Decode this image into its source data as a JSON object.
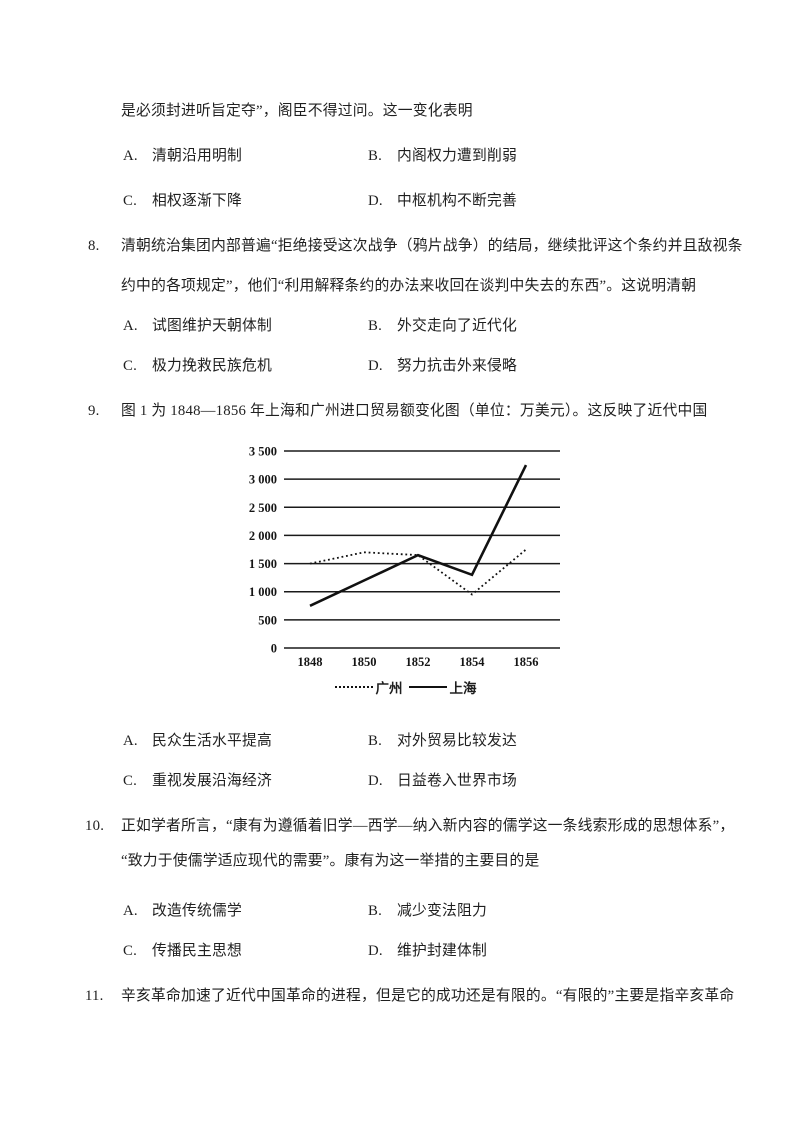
{
  "questions": [
    {
      "number": "",
      "lines": [
        "是必须封进听旨定夺”，阁臣不得过问。这一变化表明"
      ],
      "options": [
        {
          "label": "A.",
          "text": "清朝沿用明制"
        },
        {
          "label": "B.",
          "text": "内阁权力遭到削弱"
        },
        {
          "label": "C.",
          "text": "相权逐渐下降"
        },
        {
          "label": "D.",
          "text": "中枢机构不断完善"
        }
      ]
    },
    {
      "number": "8.",
      "lines": [
        "清朝统治集团内部普遍“拒绝接受这次战争（鸦片战争）的结局，继续批评这个条约并且敌视条",
        "约中的各项规定”，他们“利用解释条约的办法来收回在谈判中失去的东西”。这说明清朝"
      ],
      "options": [
        {
          "label": "A.",
          "text": "试图维护天朝体制"
        },
        {
          "label": "B.",
          "text": "外交走向了近代化"
        },
        {
          "label": "C.",
          "text": "极力挽救民族危机"
        },
        {
          "label": "D.",
          "text": "努力抗击外来侵略"
        }
      ]
    },
    {
      "number": "9.",
      "lines": [
        "图 1 为 1848—1856 年上海和广州进口贸易额变化图（单位：万美元）。这反映了近代中国"
      ],
      "options": [
        {
          "label": "A.",
          "text": "民众生活水平提高"
        },
        {
          "label": "B.",
          "text": "对外贸易比较发达"
        },
        {
          "label": "C.",
          "text": "重视发展沿海经济"
        },
        {
          "label": "D.",
          "text": "日益卷入世界市场"
        }
      ]
    },
    {
      "number": "10.",
      "lines": [
        "正如学者所言，“康有为遵循着旧学—西学—纳入新内容的儒学这一条线索形成的思想体系”，",
        "“致力于使儒学适应现代的需要”。康有为这一举措的主要目的是"
      ],
      "options": [
        {
          "label": "A.",
          "text": "改造传统儒学"
        },
        {
          "label": "B.",
          "text": "减少变法阻力"
        },
        {
          "label": "C.",
          "text": "传播民主思想"
        },
        {
          "label": "D.",
          "text": "维护封建体制"
        }
      ]
    },
    {
      "number": "11.",
      "lines": [
        "辛亥革命加速了近代中国革命的进程，但是它的成功还是有限的。“有限的”主要是指辛亥革命"
      ],
      "options": []
    }
  ],
  "chart_data": {
    "type": "line",
    "title": "1848—1856 年上海和广州进口贸易额变化图",
    "unit_note": "单位：万美元",
    "x": [
      1848,
      1850,
      1852,
      1854,
      1856
    ],
    "x_tick_labels": [
      "1848",
      "1850",
      "1852",
      "1854",
      "1856"
    ],
    "y_tick_labels": [
      "3 500",
      "3 000",
      "2 500",
      "2 000",
      "1 500",
      "1 000",
      "500",
      "0"
    ],
    "ylim": [
      0,
      3500
    ],
    "y_step": 500,
    "grid": "horizontal",
    "legend_position": "bottom",
    "line_color": "#111111",
    "series": [
      {
        "name": "广州",
        "style": "dotted",
        "values": [
          1500,
          1700,
          1650,
          950,
          1750
        ]
      },
      {
        "name": "上海",
        "style": "solid",
        "values": [
          750,
          1200,
          1650,
          1300,
          3250
        ]
      }
    ]
  }
}
